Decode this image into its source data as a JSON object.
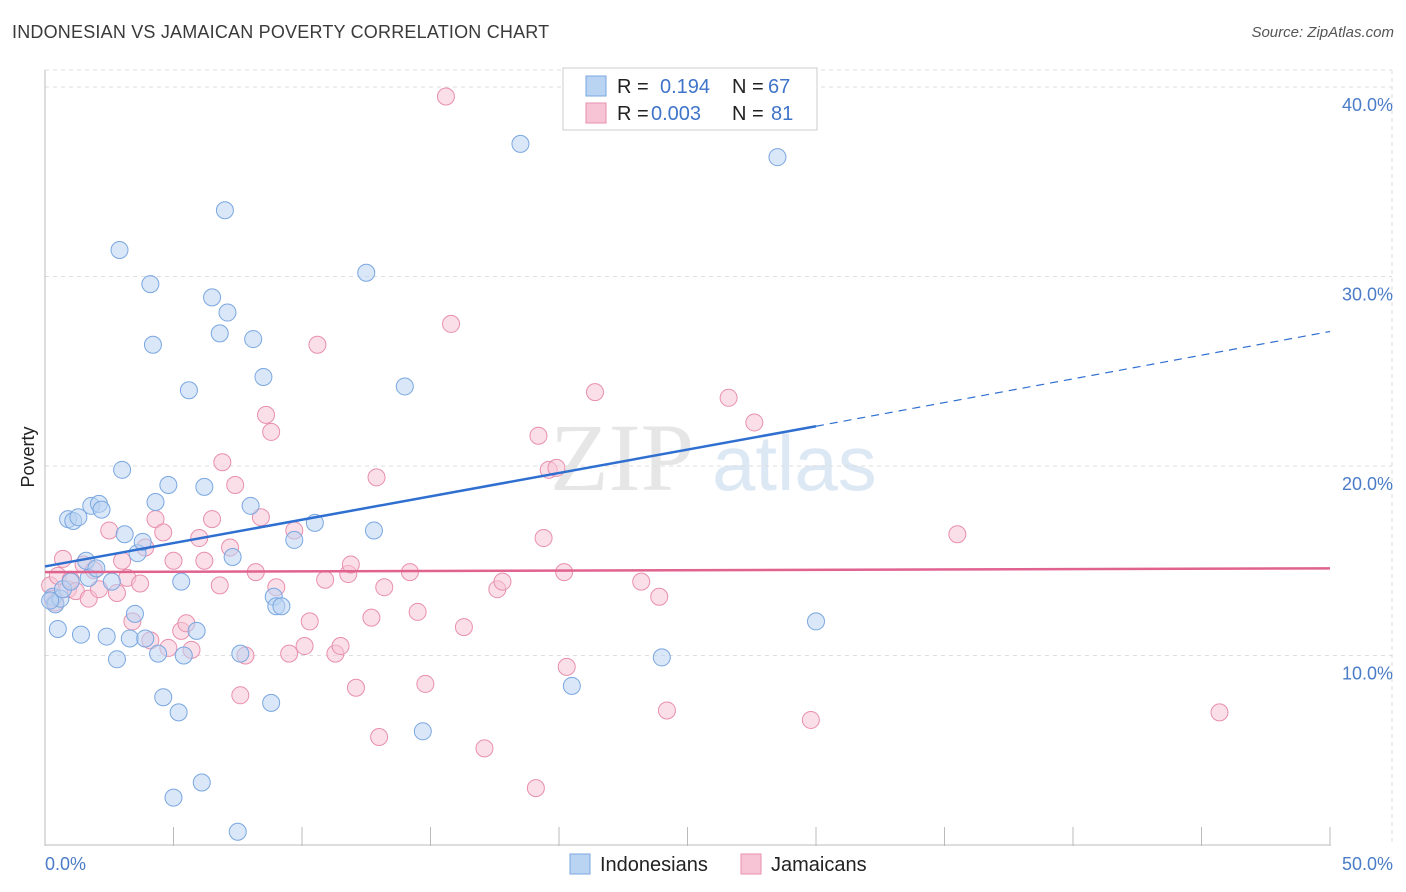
{
  "title": "INDONESIAN VS JAMAICAN POVERTY CORRELATION CHART",
  "source": "Source: ZipAtlas.com",
  "watermark": {
    "zip": "ZIP",
    "atlas": "atlas"
  },
  "colors": {
    "blue_fill": "#b9d3f3",
    "blue_stroke": "#7aa7e0",
    "blue_line": "#2f6fd0",
    "pink_fill": "#f7c4d5",
    "pink_stroke": "#e88fad",
    "pink_line": "#e0628f",
    "tick_text": "#4a7cc7",
    "grid": "#dddddd"
  },
  "legend": {
    "r_label": "R =",
    "n_label": "N =",
    "rows": [
      {
        "series": "Indonesians",
        "r": "0.194",
        "n": "67"
      },
      {
        "series": "Jamaicans",
        "r": "0.003",
        "n": "81"
      }
    ]
  },
  "chart_data": {
    "type": "scatter",
    "xlabel": "",
    "ylabel": "Poverty",
    "xlim": [
      0,
      50
    ],
    "ylim": [
      0,
      40.9
    ],
    "x_tick_labels": [
      "0.0%",
      "50.0%"
    ],
    "y_ticks": [
      10,
      20,
      30,
      40
    ],
    "y_tick_labels": [
      "10.0%",
      "20.0%",
      "30.0%",
      "40.0%"
    ],
    "grid": "horizontal dashed",
    "legend_position": "top-center",
    "series": [
      {
        "name": "Indonesians",
        "color": "#b9d3f3",
        "points": [
          [
            0.3,
            13.1
          ],
          [
            0.4,
            12.7
          ],
          [
            0.5,
            11.4
          ],
          [
            0.6,
            13.0
          ],
          [
            0.7,
            13.5
          ],
          [
            0.9,
            17.2
          ],
          [
            1.0,
            13.9
          ],
          [
            1.1,
            17.1
          ],
          [
            1.3,
            17.3
          ],
          [
            1.4,
            11.1
          ],
          [
            1.6,
            15.0
          ],
          [
            1.7,
            14.1
          ],
          [
            1.8,
            17.9
          ],
          [
            2.0,
            14.6
          ],
          [
            2.1,
            18.0
          ],
          [
            2.2,
            17.7
          ],
          [
            2.4,
            11.0
          ],
          [
            2.6,
            13.9
          ],
          [
            2.8,
            9.8
          ],
          [
            2.9,
            31.4
          ],
          [
            3.0,
            19.8
          ],
          [
            3.1,
            16.4
          ],
          [
            3.3,
            10.9
          ],
          [
            3.5,
            12.2
          ],
          [
            3.6,
            15.4
          ],
          [
            3.8,
            16.0
          ],
          [
            3.9,
            10.9
          ],
          [
            4.1,
            29.6
          ],
          [
            4.2,
            26.4
          ],
          [
            4.3,
            18.1
          ],
          [
            4.4,
            10.1
          ],
          [
            4.6,
            7.8
          ],
          [
            4.8,
            19.0
          ],
          [
            5.0,
            2.5
          ],
          [
            5.2,
            7.0
          ],
          [
            5.3,
            13.9
          ],
          [
            5.4,
            10.0
          ],
          [
            5.6,
            24.0
          ],
          [
            5.9,
            11.3
          ],
          [
            6.1,
            3.3
          ],
          [
            6.2,
            18.9
          ],
          [
            6.5,
            28.9
          ],
          [
            6.8,
            27.0
          ],
          [
            7.0,
            33.5
          ],
          [
            7.1,
            28.1
          ],
          [
            7.3,
            15.2
          ],
          [
            7.5,
            0.7
          ],
          [
            7.6,
            10.1
          ],
          [
            8.0,
            17.9
          ],
          [
            8.1,
            26.7
          ],
          [
            8.5,
            24.7
          ],
          [
            8.8,
            7.5
          ],
          [
            8.9,
            13.1
          ],
          [
            9.0,
            12.6
          ],
          [
            9.2,
            12.6
          ],
          [
            9.7,
            16.1
          ],
          [
            10.5,
            17.0
          ],
          [
            12.5,
            30.2
          ],
          [
            12.8,
            16.6
          ],
          [
            14.0,
            24.2
          ],
          [
            14.7,
            6.0
          ],
          [
            18.5,
            37.0
          ],
          [
            20.5,
            8.4
          ],
          [
            24.0,
            9.9
          ],
          [
            28.5,
            36.3
          ],
          [
            30.0,
            11.8
          ],
          [
            0.2,
            12.9
          ]
        ],
        "trend": {
          "x": [
            0,
            30
          ],
          "y": [
            14.7,
            22.1
          ],
          "extended_to": [
            50,
            27.1
          ]
        }
      },
      {
        "name": "Jamaicans",
        "color": "#f7c4d5",
        "points": [
          [
            0.2,
            13.7
          ],
          [
            0.3,
            13.0
          ],
          [
            0.5,
            14.2
          ],
          [
            0.7,
            15.1
          ],
          [
            0.9,
            13.5
          ],
          [
            1.0,
            14.0
          ],
          [
            1.2,
            13.4
          ],
          [
            1.5,
            14.8
          ],
          [
            1.7,
            13.0
          ],
          [
            1.9,
            14.5
          ],
          [
            2.1,
            13.5
          ],
          [
            2.5,
            16.6
          ],
          [
            2.8,
            13.3
          ],
          [
            3.0,
            15.0
          ],
          [
            3.2,
            14.1
          ],
          [
            3.4,
            11.8
          ],
          [
            3.7,
            13.8
          ],
          [
            3.9,
            15.7
          ],
          [
            4.1,
            10.8
          ],
          [
            4.3,
            17.2
          ],
          [
            4.6,
            16.5
          ],
          [
            4.8,
            10.4
          ],
          [
            5.0,
            15.0
          ],
          [
            5.3,
            11.3
          ],
          [
            5.5,
            11.7
          ],
          [
            5.7,
            10.3
          ],
          [
            6.0,
            16.2
          ],
          [
            6.2,
            15.0
          ],
          [
            6.5,
            17.2
          ],
          [
            6.8,
            13.7
          ],
          [
            6.9,
            20.2
          ],
          [
            7.2,
            15.7
          ],
          [
            7.4,
            19.0
          ],
          [
            7.6,
            7.9
          ],
          [
            7.8,
            10.0
          ],
          [
            8.2,
            14.4
          ],
          [
            8.4,
            17.3
          ],
          [
            8.6,
            22.7
          ],
          [
            8.8,
            21.8
          ],
          [
            9.0,
            13.6
          ],
          [
            9.5,
            10.1
          ],
          [
            9.7,
            16.6
          ],
          [
            10.1,
            10.5
          ],
          [
            10.3,
            11.8
          ],
          [
            10.6,
            26.4
          ],
          [
            10.9,
            14.0
          ],
          [
            11.3,
            10.1
          ],
          [
            11.5,
            10.5
          ],
          [
            11.8,
            14.3
          ],
          [
            11.9,
            14.8
          ],
          [
            12.1,
            8.3
          ],
          [
            12.7,
            12.0
          ],
          [
            12.9,
            19.4
          ],
          [
            13.0,
            5.7
          ],
          [
            13.2,
            13.6
          ],
          [
            14.2,
            14.4
          ],
          [
            14.5,
            12.3
          ],
          [
            14.8,
            8.5
          ],
          [
            15.6,
            39.5
          ],
          [
            15.8,
            27.5
          ],
          [
            16.3,
            11.5
          ],
          [
            17.1,
            5.1
          ],
          [
            17.6,
            13.5
          ],
          [
            17.8,
            13.9
          ],
          [
            19.1,
            3.0
          ],
          [
            19.2,
            21.6
          ],
          [
            19.4,
            16.2
          ],
          [
            19.6,
            19.8
          ],
          [
            19.9,
            19.9
          ],
          [
            20.2,
            14.4
          ],
          [
            20.3,
            9.4
          ],
          [
            21.4,
            23.9
          ],
          [
            23.2,
            13.9
          ],
          [
            23.9,
            13.1
          ],
          [
            24.2,
            7.1
          ],
          [
            26.6,
            23.6
          ],
          [
            27.6,
            22.3
          ],
          [
            29.8,
            6.6
          ],
          [
            35.5,
            16.4
          ],
          [
            45.7,
            7.0
          ],
          [
            0.4,
            12.8
          ]
        ],
        "trend": {
          "x": [
            0,
            50
          ],
          "y": [
            14.4,
            14.6
          ]
        }
      }
    ]
  }
}
